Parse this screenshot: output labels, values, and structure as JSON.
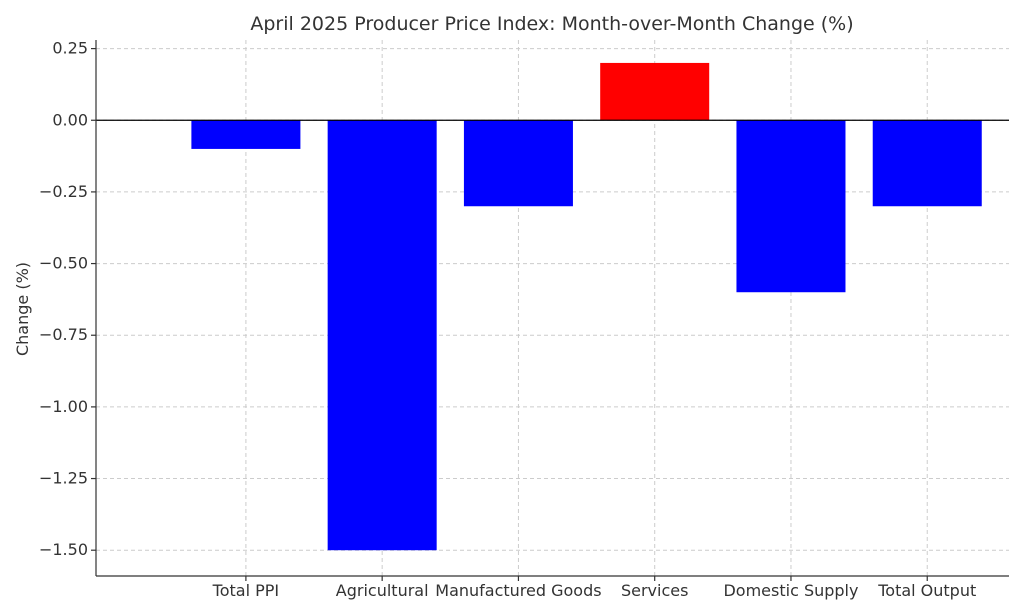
{
  "chart_data": {
    "type": "bar",
    "title": "April 2025 Producer Price Index: Month-over-Month Change (%)",
    "xlabel": "",
    "ylabel": "Change (%)",
    "categories": [
      "Total PPI",
      "Agricultural",
      "Manufactured Goods",
      "Services",
      "Domestic Supply",
      "Total Output"
    ],
    "values": [
      -0.1,
      -1.5,
      -0.3,
      0.2,
      -0.6,
      -0.3
    ],
    "bar_colors": [
      "#0000ff",
      "#0000ff",
      "#0000ff",
      "#ff0000",
      "#0000ff",
      "#0000ff"
    ],
    "ylim": [
      -1.59,
      0.28
    ],
    "yticks": [
      0.25,
      0.0,
      -0.25,
      -0.5,
      -0.75,
      -1.0,
      -1.25,
      -1.5
    ],
    "ytick_labels": [
      "0.25",
      "0.00",
      "−0.25",
      "−0.50",
      "−0.75",
      "−1.00",
      "−1.25",
      "−1.50"
    ],
    "grid": true,
    "legend": "none"
  }
}
